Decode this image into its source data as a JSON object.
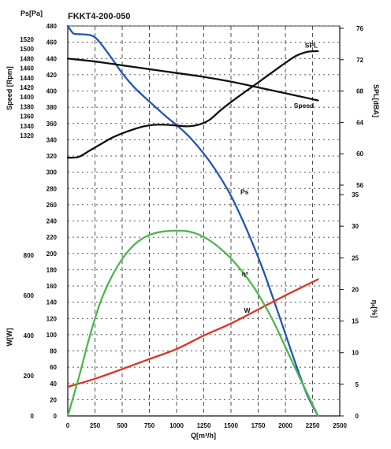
{
  "chart_data": {
    "type": "line",
    "title": "FKKT4-200-050",
    "x": {
      "label": "Q[m³/h]",
      "range": [
        0,
        2500
      ],
      "ticks": [
        0,
        250,
        500,
        750,
        1000,
        1250,
        1500,
        1750,
        2000,
        2250,
        2500
      ]
    },
    "axes": {
      "ps": {
        "label": "Ps[Pa]",
        "range": [
          0,
          480
        ],
        "ticks": [
          0,
          20,
          40,
          60,
          80,
          100,
          120,
          140,
          160,
          180,
          200,
          220,
          240,
          260,
          280,
          300,
          320,
          340,
          360,
          380,
          400,
          420,
          440,
          460,
          480
        ]
      },
      "speed": {
        "label": "Speed [Rpm]",
        "range": [
          1320,
          1520
        ],
        "ticks": [
          1320,
          1340,
          1360,
          1380,
          1400,
          1420,
          1440,
          1460,
          1480,
          1500,
          1520
        ]
      },
      "power": {
        "label": "W[W]",
        "range": [
          0,
          800
        ],
        "ticks": [
          0,
          200,
          400,
          600,
          800
        ]
      },
      "spl": {
        "label": "SPL[dBA]",
        "range": [
          56,
          76
        ],
        "ticks": [
          56,
          60,
          64,
          68,
          72,
          76
        ]
      },
      "eff": {
        "label": "ηₛ[%]",
        "range": [
          0,
          35
        ],
        "ticks": [
          0,
          5,
          10,
          15,
          20,
          25,
          30,
          35
        ]
      }
    },
    "series": [
      {
        "name": "Ps",
        "axis": "ps",
        "color": "#2255bb",
        "x": [
          0,
          50,
          100,
          200,
          250,
          300,
          400,
          500,
          600,
          700,
          800,
          900,
          1000,
          1100,
          1200,
          1300,
          1400,
          1500,
          1600,
          1700,
          1800,
          1900,
          2000,
          2100,
          2200,
          2300
        ],
        "y": [
          480,
          471,
          470,
          469,
          466,
          459,
          441,
          422,
          406,
          393,
          381,
          369,
          358,
          346,
          331,
          314,
          294,
          271,
          243,
          212,
          178,
          140,
          101,
          62,
          26,
          0
        ]
      },
      {
        "name": "Speed",
        "axis": "speed",
        "color": "#111111",
        "x": [
          0,
          250,
          500,
          750,
          1000,
          1250,
          1500,
          1750,
          2000,
          2300
        ],
        "y": [
          1480,
          1474,
          1466,
          1458,
          1450,
          1442,
          1432,
          1420,
          1408,
          1393
        ]
      },
      {
        "name": "SPL",
        "axis": "spl",
        "color": "#111111",
        "x": [
          0,
          100,
          200,
          300,
          400,
          500,
          600,
          700,
          800,
          900,
          1000,
          1100,
          1200,
          1300,
          1400,
          1500,
          1600,
          1700,
          1800,
          1900,
          2000,
          2100,
          2200,
          2300
        ],
        "y": [
          59.5,
          59.6,
          60.4,
          61.2,
          62.0,
          62.6,
          63.1,
          63.5,
          63.7,
          63.7,
          63.6,
          63.5,
          63.7,
          64.3,
          65.5,
          66.6,
          67.6,
          68.6,
          69.6,
          70.6,
          71.6,
          72.5,
          73.0,
          73.1
        ]
      },
      {
        "name": "W",
        "axis": "power",
        "color": "#dd3322",
        "x": [
          0,
          250,
          500,
          750,
          1000,
          1250,
          1500,
          1750,
          2000,
          2300
        ],
        "y": [
          145,
          185,
          233,
          283,
          333,
          400,
          460,
          530,
          600,
          680
        ]
      },
      {
        "name": "ηˢ",
        "axis": "eff",
        "color": "#4db848",
        "x": [
          0,
          100,
          200,
          300,
          400,
          500,
          600,
          700,
          800,
          900,
          1000,
          1100,
          1200,
          1300,
          1400,
          1500,
          1600,
          1700,
          1800,
          1900,
          2000,
          2100,
          2200,
          2300
        ],
        "y": [
          0,
          6.0,
          12.5,
          18.0,
          21.9,
          24.8,
          26.9,
          28.2,
          28.9,
          29.2,
          29.3,
          29.2,
          28.7,
          27.8,
          26.5,
          24.9,
          22.9,
          20.6,
          17.8,
          14.6,
          10.9,
          7.2,
          3.6,
          0
        ]
      }
    ]
  }
}
